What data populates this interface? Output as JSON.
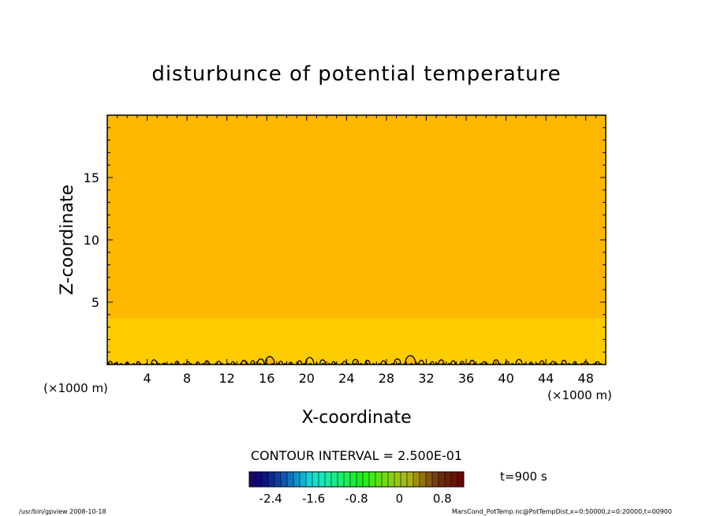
{
  "chart_data": {
    "type": "heatmap",
    "title": "disturbunce of potential temperature",
    "xlabel": "X-coordinate",
    "ylabel": "Z-coordinate",
    "x_unit": "(×1000 m)",
    "y_unit": "(×1000 m)",
    "xlim": [
      0,
      50
    ],
    "ylim": [
      0,
      20
    ],
    "x_ticks": [
      4,
      8,
      12,
      16,
      20,
      24,
      28,
      32,
      36,
      40,
      44,
      48
    ],
    "y_ticks": [
      5,
      10,
      15
    ],
    "contour_interval": "CONTOUR INTERVAL = 2.500E-01",
    "time_label": "t=900 s",
    "colorbar": {
      "range": [
        -2.8,
        1.2
      ],
      "ticks": [
        "-2.4",
        "-1.6",
        "-0.8",
        "0",
        "0.8"
      ],
      "tick_values": [
        -2.4,
        -1.6,
        -0.8,
        0,
        0.8
      ]
    },
    "regions": [
      {
        "z_min": 0,
        "z_max": 3.7,
        "value_range": [
          0,
          0.25
        ],
        "color": "#ffcc00"
      },
      {
        "z_min": 3.7,
        "z_max": 20,
        "value_range": [
          -0.25,
          0
        ],
        "color": "#ffb800"
      }
    ],
    "surface_contour_x": [
      0.3,
      0.9,
      2.0,
      3.1,
      4.7,
      5.7,
      7.0,
      8.1,
      9.1,
      10.0,
      11.2,
      12.6,
      13.7,
      14.6,
      15.4,
      16.3,
      17.4,
      18.4,
      19.3,
      20.3,
      21.6,
      22.7,
      23.8,
      24.9,
      26.1,
      27.7,
      29.1,
      30.4,
      31.5,
      32.6,
      33.5,
      34.7,
      35.6,
      36.6,
      37.8,
      39.0,
      40.1,
      41.3,
      42.5,
      43.6,
      44.7,
      45.8,
      46.9,
      48.0,
      49.2
    ],
    "surface_contour_h": [
      0.35,
      0.2,
      0.25,
      0.3,
      0.5,
      0.15,
      0.35,
      0.3,
      0.25,
      0.4,
      0.35,
      0.3,
      0.45,
      0.4,
      0.6,
      0.85,
      0.35,
      0.25,
      0.4,
      0.75,
      0.5,
      0.3,
      0.35,
      0.55,
      0.45,
      0.4,
      0.6,
      0.95,
      0.45,
      0.3,
      0.5,
      0.4,
      0.35,
      0.45,
      0.3,
      0.5,
      0.35,
      0.55,
      0.25,
      0.4,
      0.35,
      0.45,
      0.3,
      0.35,
      0.3
    ]
  },
  "footer": {
    "left": "/usr/bin/gpview   2008-10-18",
    "right": "MarsCond_PotTemp.nc@PotTempDist,x=0:50000,z=0:20000,t=00900"
  }
}
